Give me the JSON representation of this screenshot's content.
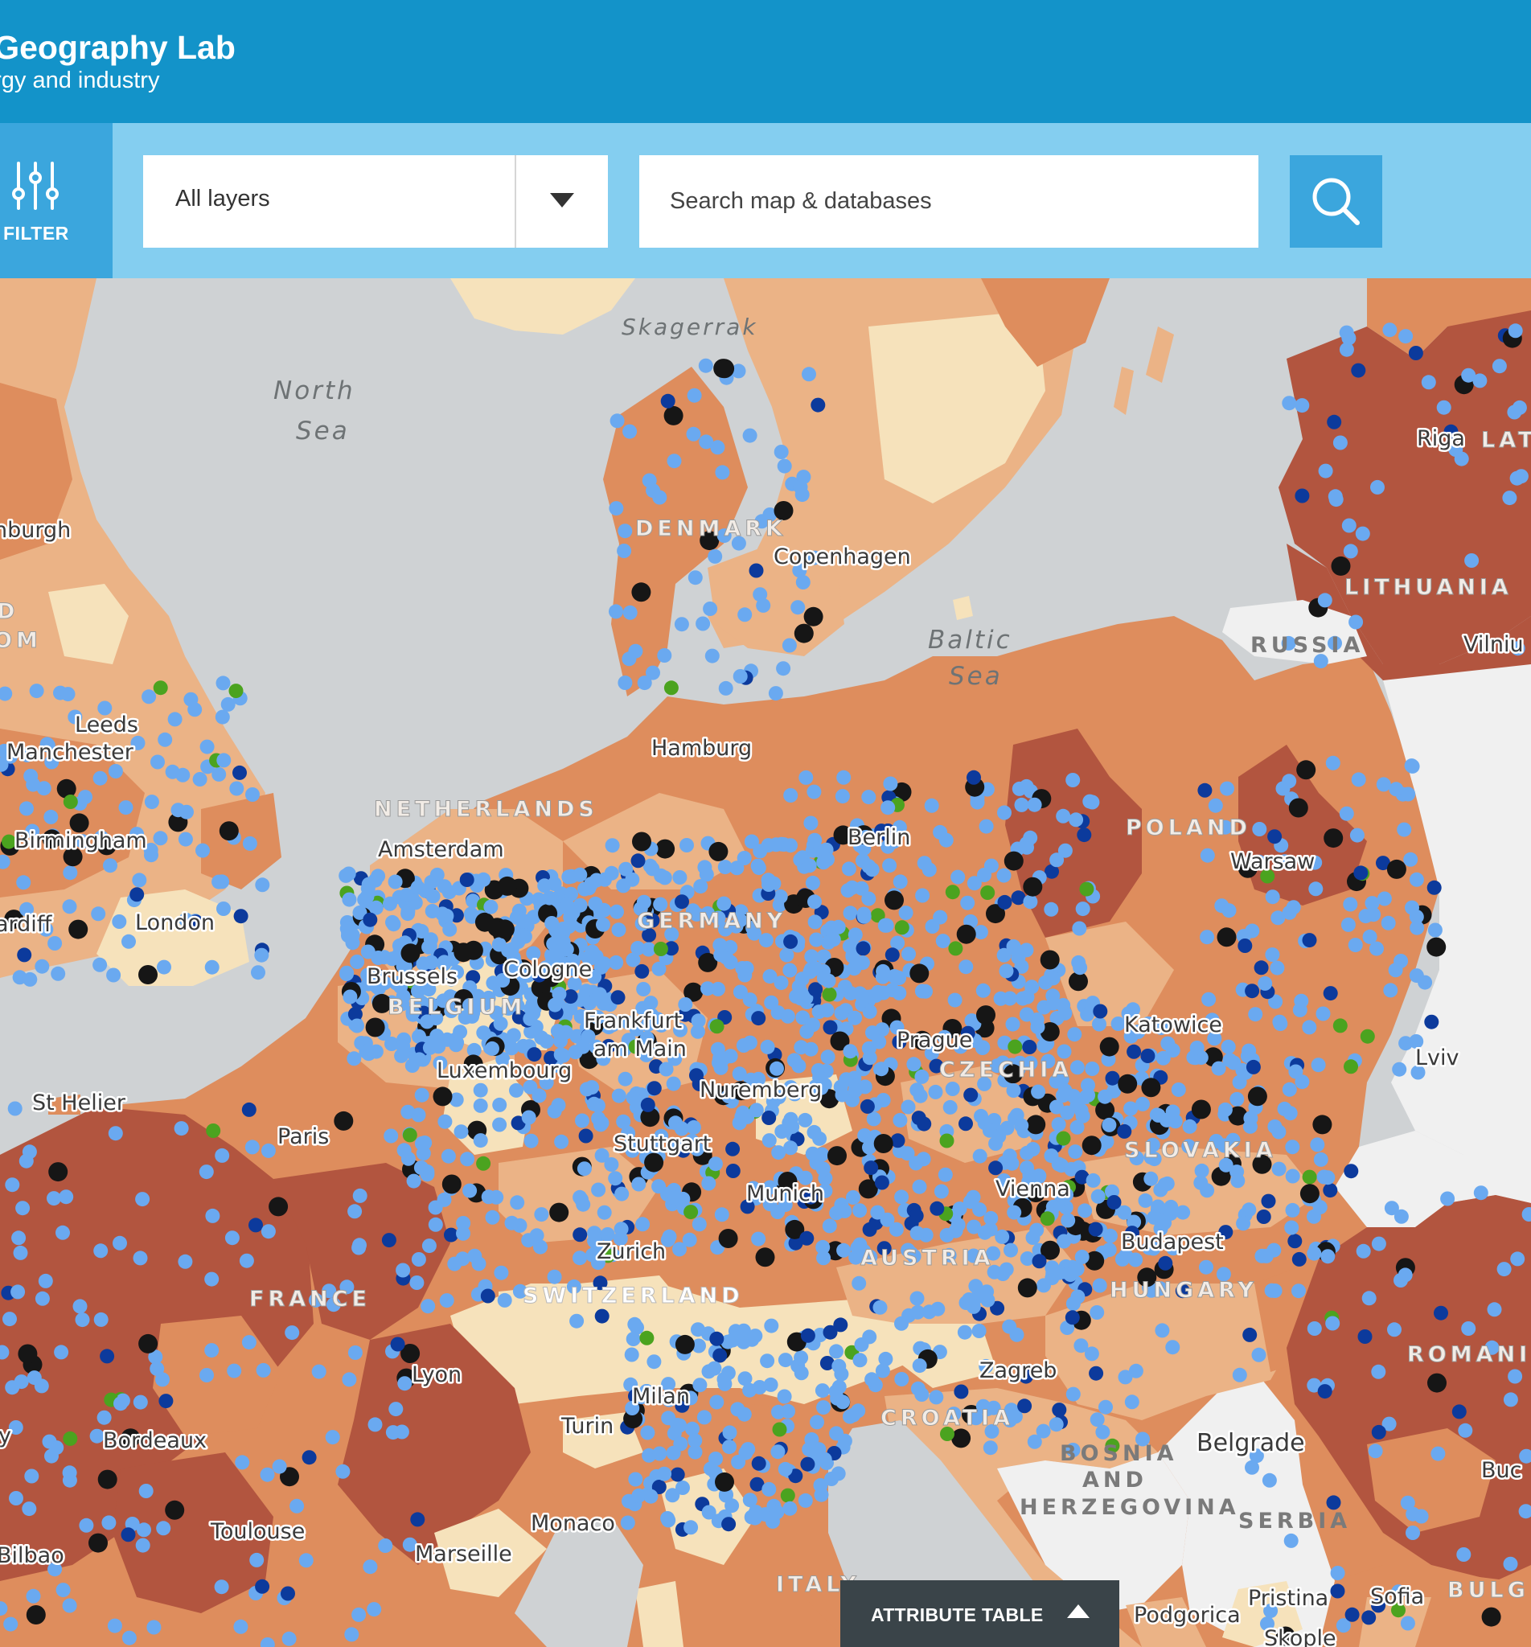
{
  "header": {
    "title": "y Geography Lab",
    "subtitle": "ergy and industry"
  },
  "toolbar": {
    "filter_label": "FILTER",
    "layer_select_value": "All layers",
    "search_placeholder": "Search map & databases"
  },
  "attribute_table": {
    "label": "ATTRIBUTE TABLE"
  },
  "colors": {
    "header": "#1393c9",
    "toolbar": "#84cef0",
    "button": "#3ba6dd",
    "water": "#cfd2d4",
    "choropleth_light": "#f6e2bb",
    "choropleth_medium_light": "#ebb386",
    "choropleth_medium": "#de8d5d",
    "choropleth_dark": "#b2553f",
    "non_data_land": "#f0f0f0",
    "point_light_blue": "#6aa9f0",
    "point_dark_blue": "#0c3a9c",
    "point_black": "#161616",
    "point_green": "#4ba31f"
  },
  "map": {
    "water_labels": [
      {
        "text": "North",
        "kind": "sea"
      },
      {
        "text": "Sea",
        "kind": "sea"
      },
      {
        "text": "Skagerrak",
        "kind": "sea"
      },
      {
        "text": "Baltic",
        "kind": "sea"
      },
      {
        "text": "Sea",
        "kind": "sea"
      }
    ],
    "country_labels": [
      "DENMARK",
      "NETHERLANDS",
      "GERMANY",
      "BELGIUM",
      "POLAND",
      "CZECHIA",
      "SLOVAKIA",
      "AUSTRIA",
      "HUNGARY",
      "SWITZERLAND",
      "FRANCE",
      "CROATIA",
      "BOSNIA",
      "AND",
      "HERZEGOVINA",
      "SERBIA",
      "ITALY",
      "LITHUANIA",
      "RUSSIA",
      "ROMANI",
      "LAT",
      "BULG",
      "D",
      "OM"
    ],
    "city_labels": [
      "Copenhagen",
      "Hamburg",
      "Amsterdam",
      "Berlin",
      "Brussels",
      "Cologne",
      "Frankfurt",
      "am Main",
      "Luxembourg",
      "Paris",
      "Prague",
      "Nuremberg",
      "Stuttgart",
      "Munich",
      "Vienna",
      "Zurich",
      "Budapest",
      "Warsaw",
      "Katowice",
      "Riga",
      "Vilniu",
      "Lviv",
      "nburgh",
      "Leeds",
      "Manchester",
      "Birmingham",
      "London",
      "ardiff",
      "St Helier",
      "Lyon",
      "Milan",
      "Turin",
      "Bordeaux",
      "Toulouse",
      "Bilbao",
      "Marseille",
      "Monaco",
      "Zagreb",
      "Belgrade",
      "Buc",
      "Podgorica",
      "Pristina",
      "Sofia",
      "Skople",
      "y"
    ]
  }
}
